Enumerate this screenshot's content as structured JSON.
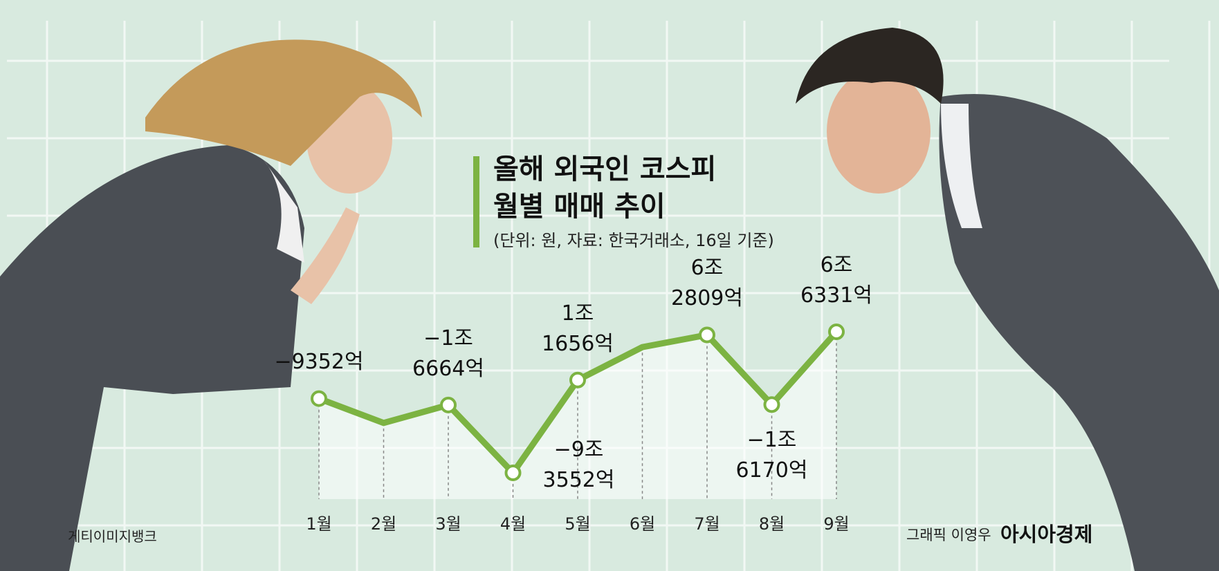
{
  "chart_data": {
    "type": "line",
    "title": "올해 외국인 코스피\n월별 매매 추이",
    "subtitle": "(단위: 원, 자료: 한국거래소, 16일 기준)",
    "categories": [
      "1월",
      "2월",
      "3월",
      "4월",
      "5월",
      "6월",
      "7월",
      "8월",
      "9월"
    ],
    "values": [
      -9352,
      -37000,
      -16664,
      -93552,
      11656,
      49000,
      62809,
      -16170,
      66331
    ],
    "value_labels": [
      "−9352억",
      null,
      "−1조\n6664억",
      "−9조\n3552억",
      "1조\n1656억",
      null,
      "6조\n2809억",
      "−1조\n6170억",
      "6조\n6331억"
    ],
    "color": "#7cb342",
    "photo_credit": "게티이미지뱅크",
    "graphic_credit": "그래픽 이영우",
    "publisher": "아시아경제"
  }
}
